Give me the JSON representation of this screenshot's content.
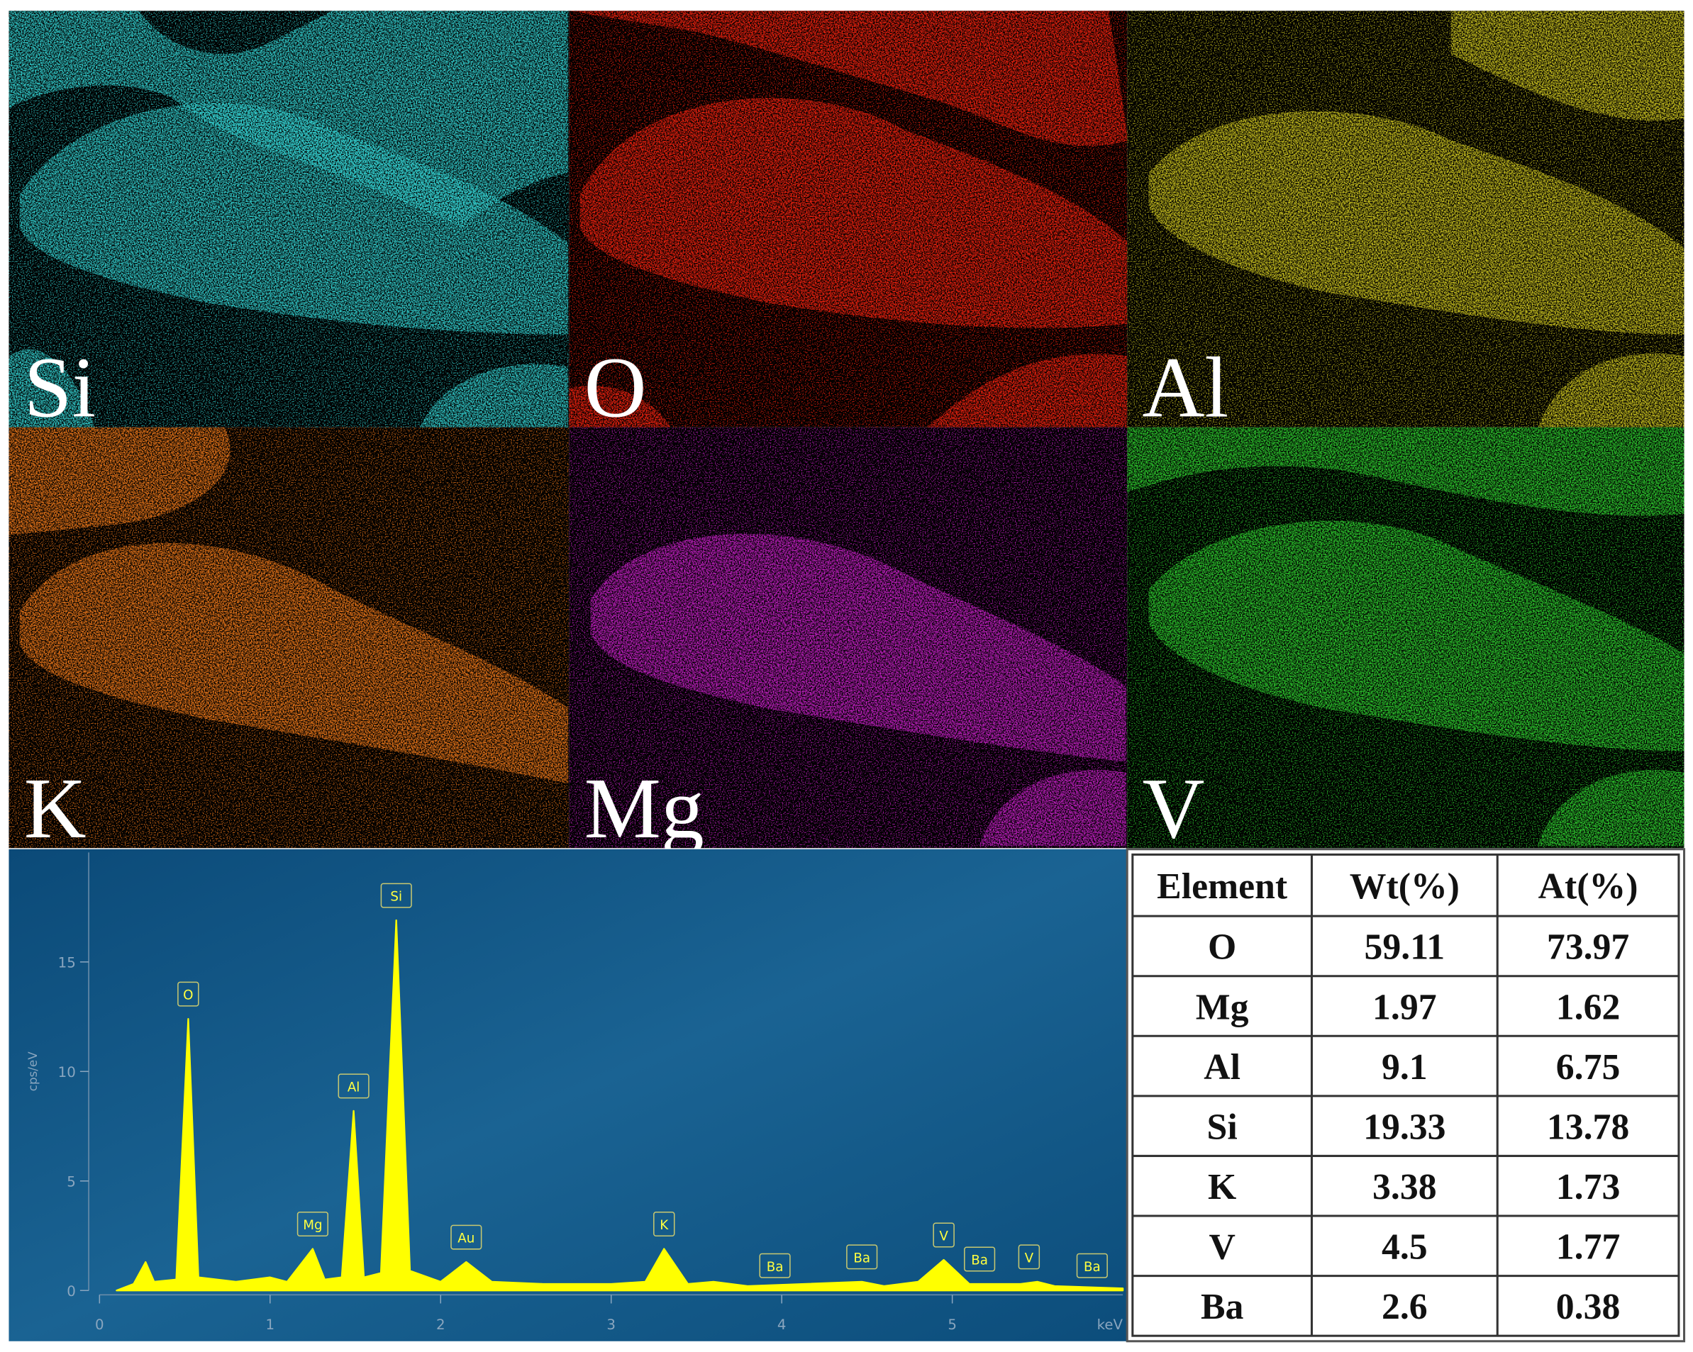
{
  "maps": [
    {
      "label": "Si",
      "color": "#33cccc"
    },
    {
      "label": "O",
      "color": "#ee2211"
    },
    {
      "label": "Al",
      "color": "#c8c020"
    },
    {
      "label": "K",
      "color": "#e8761a"
    },
    {
      "label": "Mg",
      "color": "#c020c0"
    },
    {
      "label": "V",
      "color": "#2ec82e"
    }
  ],
  "spectrum": {
    "type": "area",
    "color": "#ffff00",
    "x": [
      0.1,
      0.2,
      0.27,
      0.32,
      0.45,
      0.52,
      0.58,
      0.8,
      1.0,
      1.1,
      1.25,
      1.32,
      1.42,
      1.49,
      1.55,
      1.65,
      1.74,
      1.82,
      2.0,
      2.15,
      2.3,
      2.6,
      3.0,
      3.2,
      3.31,
      3.45,
      3.6,
      3.8,
      4.47,
      4.6,
      4.8,
      4.95,
      5.1,
      5.4,
      5.5,
      5.6,
      6.0
    ],
    "values": [
      0,
      0.3,
      1.3,
      0.4,
      0.5,
      12.4,
      0.6,
      0.4,
      0.6,
      0.4,
      1.9,
      0.5,
      0.6,
      8.2,
      0.6,
      0.8,
      16.9,
      0.9,
      0.4,
      1.3,
      0.4,
      0.3,
      0.3,
      0.4,
      1.9,
      0.3,
      0.4,
      0.2,
      0.4,
      0.2,
      0.4,
      1.4,
      0.3,
      0.3,
      0.4,
      0.2,
      0.1
    ],
    "xlim": [
      0,
      6
    ],
    "xticks": [
      0,
      1,
      2,
      3,
      4,
      5
    ],
    "ylim": [
      0,
      20
    ],
    "yticks": [
      0,
      5,
      10,
      15
    ],
    "ylabel": "cps/eV",
    "xlabel": "keV",
    "peak_labels": [
      {
        "label": "O",
        "x": 0.52
      },
      {
        "label": "Mg",
        "x": 1.25
      },
      {
        "label": "Al",
        "x": 1.49
      },
      {
        "label": "Si",
        "x": 1.74
      },
      {
        "label": "Au",
        "x": 2.15
      },
      {
        "label": "K",
        "x": 3.31
      },
      {
        "label": "Ba",
        "x": 3.96
      },
      {
        "label": "Ba",
        "x": 4.47
      },
      {
        "label": "V",
        "x": 4.95
      },
      {
        "label": "Ba",
        "x": 5.16
      },
      {
        "label": "V",
        "x": 5.45
      },
      {
        "label": "Ba",
        "x": 5.82
      }
    ]
  },
  "table": {
    "header": [
      "Element",
      "Wt(%)",
      "At(%)"
    ],
    "rows": [
      [
        "O",
        "59.11",
        "73.97"
      ],
      [
        "Mg",
        "1.97",
        "1.62"
      ],
      [
        "Al",
        "9.1",
        "6.75"
      ],
      [
        "Si",
        "19.33",
        "13.78"
      ],
      [
        "K",
        "3.38",
        "1.73"
      ],
      [
        "V",
        "4.5",
        "1.77"
      ],
      [
        "Ba",
        "2.6",
        "0.38"
      ]
    ]
  }
}
